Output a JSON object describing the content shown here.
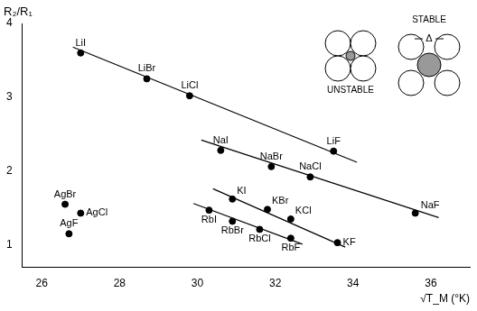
{
  "chart_data": {
    "type": "scatter",
    "x_label": "√T_M (°K)",
    "y_label": "R₂/R₁",
    "x": [
      27.0,
      28.7,
      29.8,
      33.5,
      30.6,
      31.9,
      32.9,
      35.6,
      30.9,
      31.8,
      32.4,
      33.6,
      30.3,
      30.9,
      31.6,
      32.4,
      26.6,
      27.0,
      26.7
    ],
    "values": [
      3.6,
      3.25,
      3.02,
      2.27,
      2.28,
      2.06,
      1.92,
      1.43,
      1.62,
      1.48,
      1.35,
      1.03,
      1.47,
      1.32,
      1.21,
      1.09,
      1.55,
      1.43,
      1.15
    ],
    "point_labels": [
      "LiI",
      "LiBr",
      "LiCl",
      "LiF",
      "NaI",
      "NaBr",
      "NaCl",
      "NaF",
      "KI",
      "KBr",
      "KCl",
      "KF",
      "RbI",
      "RbBr",
      "RbCl",
      "RbF",
      "AgBr",
      "AgCl",
      "AgF"
    ],
    "fit_lines": [
      {
        "x": [
          26.8,
          34.1
        ],
        "values": [
          3.68,
          2.12
        ]
      },
      {
        "x": [
          30.1,
          36.2
        ],
        "values": [
          2.42,
          1.37
        ]
      },
      {
        "x": [
          30.4,
          33.8
        ],
        "values": [
          1.76,
          0.97
        ]
      },
      {
        "x": [
          29.9,
          32.7
        ],
        "values": [
          1.56,
          1.01
        ]
      }
    ],
    "annotations": [
      "UNSTABLE",
      "STABLE",
      "Δ"
    ],
    "xlim": [
      25.5,
      37
    ],
    "xticks": [
      26,
      28,
      30,
      32,
      34,
      36
    ],
    "ylim": [
      0.7,
      4
    ],
    "yticks": [
      1,
      2,
      3,
      4
    ],
    "grid": false,
    "color": "#000000",
    "marker": "circle",
    "line_style": "solid"
  }
}
